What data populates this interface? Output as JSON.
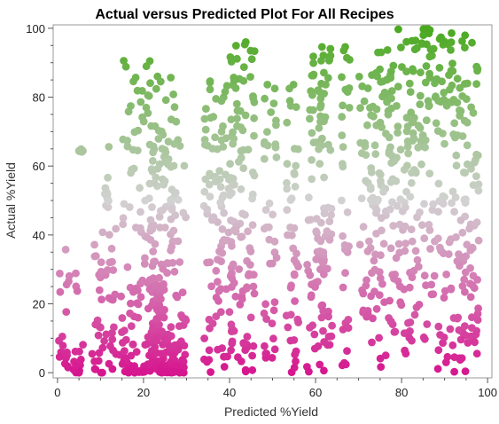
{
  "chart_data": {
    "type": "scatter",
    "title": "Actual versus Predicted Plot For All Recipes",
    "xlabel": "Predicted %Yield",
    "ylabel": "Actual %Yield",
    "xlim": [
      -1,
      101
    ],
    "ylim": [
      -1.5,
      101
    ],
    "x_ticks": [
      0,
      20,
      40,
      60,
      80,
      100
    ],
    "y_ticks": [
      0,
      20,
      40,
      60,
      80,
      100
    ],
    "grid": false,
    "legend": "none",
    "color_scale": {
      "variable": "Actual %Yield",
      "low_color": "#d6168f",
      "mid_color": "#d2d2d2",
      "high_color": "#4aa91f"
    },
    "point_clusters": [
      {
        "x": [
          0,
          3
        ],
        "y": [
          0,
          36
        ]
      },
      {
        "x": [
          3,
          6
        ],
        "y": [
          0,
          32
        ]
      },
      {
        "x": [
          5,
          6
        ],
        "y": [
          64,
          65
        ]
      },
      {
        "x": [
          8,
          15
        ],
        "y": [
          0,
          42
        ]
      },
      {
        "x": [
          11,
          12
        ],
        "y": [
          48,
          68
        ]
      },
      {
        "x": [
          15,
          24
        ],
        "y": [
          0,
          92
        ]
      },
      {
        "x": [
          21,
          27
        ],
        "y": [
          0,
          86
        ]
      },
      {
        "x": [
          24,
          30
        ],
        "y": [
          0,
          82
        ]
      },
      {
        "x": [
          34,
          41
        ],
        "y": [
          0,
          87
        ]
      },
      {
        "x": [
          40,
          46
        ],
        "y": [
          0,
          99
        ]
      },
      {
        "x": [
          48,
          51
        ],
        "y": [
          3,
          84
        ]
      },
      {
        "x": [
          53,
          56
        ],
        "y": [
          0,
          87
        ]
      },
      {
        "x": [
          58,
          62
        ],
        "y": [
          0,
          100
        ]
      },
      {
        "x": [
          61,
          64
        ],
        "y": [
          7,
          95
        ]
      },
      {
        "x": [
          66,
          68
        ],
        "y": [
          2,
          98
        ]
      },
      {
        "x": [
          70,
          73
        ],
        "y": [
          15,
          87
        ]
      },
      {
        "x": [
          73,
          77
        ],
        "y": [
          0,
          99
        ]
      },
      {
        "x": [
          77,
          82
        ],
        "y": [
          3,
          100
        ]
      },
      {
        "x": [
          82,
          88
        ],
        "y": [
          9,
          100
        ]
      },
      {
        "x": [
          88,
          95
        ],
        "y": [
          0,
          99
        ]
      },
      {
        "x": [
          95,
          98
        ],
        "y": [
          0,
          98
        ]
      }
    ]
  }
}
